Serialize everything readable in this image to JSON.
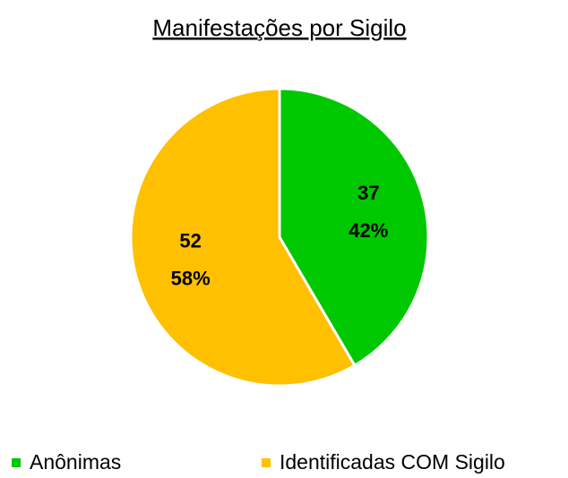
{
  "chart_data": {
    "type": "pie",
    "title": "Manifestações por Sigilo",
    "categories": [
      "Anônimas",
      "Identificadas COM Sigilo"
    ],
    "values": [
      37,
      52
    ],
    "percent_labels": [
      "42%",
      "58%"
    ],
    "colors": [
      "#00c800",
      "#ffc000"
    ],
    "legend": "bottom"
  }
}
